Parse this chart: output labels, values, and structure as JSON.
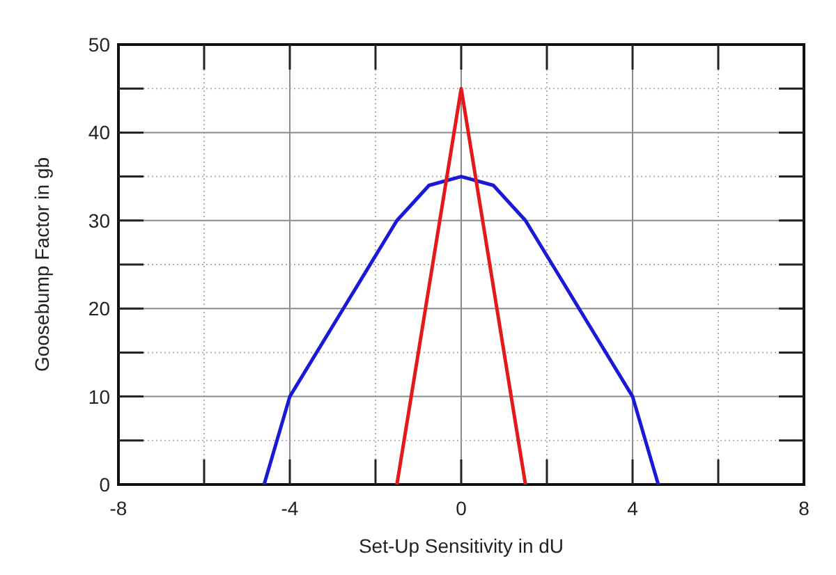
{
  "chart_data": {
    "type": "line",
    "xlabel": "Set-Up Sensitivity in dU",
    "ylabel": "Goosebump Factor in gb",
    "xlim": [
      -8,
      8
    ],
    "xticks": [
      -8,
      {
        "value": -6,
        "label": null
      },
      -4,
      {
        "value": -2,
        "label": null
      },
      0,
      {
        "value": 2,
        "label": null
      },
      4,
      {
        "value": 6,
        "label": null
      },
      8
    ],
    "ylim": [
      0,
      50
    ],
    "yticks": [
      0,
      {
        "value": 5,
        "label": null
      },
      10,
      {
        "value": 15,
        "label": null
      },
      20,
      {
        "value": 25,
        "label": null
      },
      30,
      {
        "value": 35,
        "label": null
      },
      40,
      {
        "value": 45,
        "label": null
      },
      50
    ],
    "grid": true,
    "marker": "none",
    "line_style": "solid",
    "series": [
      {
        "color": "#1a1ad6",
        "x": [
          -4.6,
          -4,
          -1.5,
          -0.75,
          0,
          0.75,
          1.5,
          4,
          4.6
        ],
        "values": [
          0,
          10,
          30,
          34,
          35,
          34,
          30,
          10,
          0
        ]
      },
      {
        "color": "#e41a1a",
        "x": [
          -1.5,
          0,
          1.5
        ],
        "values": [
          0,
          45,
          0
        ]
      }
    ]
  }
}
